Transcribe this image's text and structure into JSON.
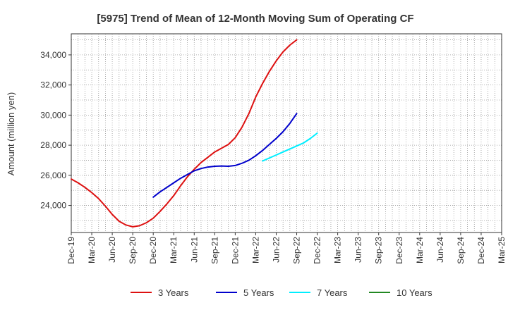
{
  "chart_data": {
    "type": "line",
    "title": "[5975]  Trend of Mean of 12-Month Moving Sum of Operating CF",
    "xlabel": "",
    "ylabel": "Amount (million yen)",
    "ylim": [
      22200,
      35400
    ],
    "yticks": [
      24000,
      26000,
      28000,
      30000,
      32000,
      34000
    ],
    "ytick_labels": [
      "24,000",
      "26,000",
      "28,000",
      "30,000",
      "32,000",
      "34,000"
    ],
    "x_tick_labels": [
      "Dec-19",
      "Mar-20",
      "Jun-20",
      "Sep-20",
      "Dec-20",
      "Mar-21",
      "Jun-21",
      "Sep-21",
      "Dec-21",
      "Mar-22",
      "Jun-22",
      "Sep-22",
      "Dec-22",
      "Mar-23",
      "Jun-23",
      "Sep-23",
      "Dec-23",
      "Mar-24",
      "Jun-24",
      "Sep-24",
      "Dec-24",
      "Mar-25"
    ],
    "grid": true,
    "legend_position": "bottom",
    "series": [
      {
        "name": "3 Years",
        "color": "#dd1111",
        "start_index": 0,
        "values": [
          25750,
          25500,
          25200,
          24850,
          24450,
          23950,
          23400,
          22950,
          22700,
          22580,
          22650,
          22850,
          23150,
          23600,
          24100,
          24650,
          25300,
          25900,
          26400,
          26850,
          27200,
          27550,
          27800,
          28050,
          28500,
          29200,
          30100,
          31200,
          32100,
          32900,
          33600,
          34200,
          34650,
          35000
        ]
      },
      {
        "name": "5 Years",
        "color": "#0000cc",
        "start_index": 12,
        "values": [
          24550,
          24900,
          25200,
          25500,
          25800,
          26050,
          26300,
          26450,
          26550,
          26600,
          26620,
          26600,
          26650,
          26800,
          27000,
          27300,
          27650,
          28050,
          28450,
          28900,
          29450,
          30100
        ]
      },
      {
        "name": "7 Years",
        "color": "#00eeff",
        "start_index": 28,
        "values": [
          26950,
          27150,
          27350,
          27550,
          27750,
          27950,
          28150,
          28450,
          28800
        ]
      },
      {
        "name": "10 Years",
        "color": "#228822",
        "start_index": 0,
        "values": []
      }
    ]
  }
}
